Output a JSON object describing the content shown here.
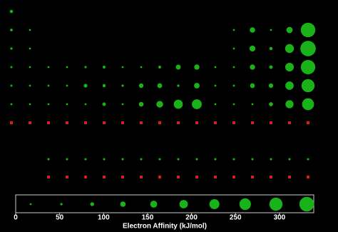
{
  "chart_data": {
    "type": "bubble-table",
    "color": "#19b319",
    "unknown_color": "#d42020",
    "series": [
      {
        "x": [
          1
        ],
        "values": [
          73
        ]
      },
      {
        "x": [
          1,
          2,
          13,
          14,
          15,
          16,
          17
        ],
        "values": [
          60,
          0,
          27,
          122,
          7,
          141,
          328
        ]
      },
      {
        "x": [
          1,
          2,
          13,
          14,
          15,
          16,
          17
        ],
        "values": [
          53,
          0,
          43,
          134,
          72,
          200,
          349
        ]
      },
      {
        "x": [
          1,
          2,
          3,
          4,
          5,
          6,
          7,
          8,
          9,
          10,
          11,
          12,
          13,
          14,
          15,
          16,
          17
        ],
        "values": [
          48,
          2,
          18,
          8,
          51,
          65,
          0,
          15,
          64,
          112,
          119,
          0,
          29,
          119,
          78,
          195,
          325
        ]
      },
      {
        "x": [
          1,
          2,
          3,
          4,
          5,
          6,
          7,
          8,
          9,
          10,
          11,
          12,
          13,
          14,
          15,
          16,
          17
        ],
        "values": [
          47,
          5,
          30,
          41,
          86,
          72,
          53,
          101,
          110,
          54,
          126,
          0,
          29,
          107,
          101,
          190,
          295
        ]
      },
      {
        "x": [
          1,
          2,
          3,
          4,
          5,
          6,
          7,
          8,
          9,
          10,
          11,
          12,
          13,
          14,
          15,
          16,
          17
        ],
        "values": [
          46,
          14,
          33,
          0,
          31,
          79,
          14,
          106,
          151,
          205,
          223,
          0,
          36,
          35,
          91,
          183,
          270
        ]
      },
      {
        "x": [
          1,
          2,
          3,
          4,
          5,
          6,
          7,
          8,
          9,
          10,
          11,
          12,
          13,
          14,
          15,
          16,
          17
        ],
        "values": [
          null,
          null,
          null,
          null,
          null,
          null,
          null,
          null,
          null,
          null,
          null,
          null,
          null,
          null,
          null,
          null,
          null
        ]
      },
      {
        "x": [
          3,
          4,
          5,
          6,
          7,
          8,
          9,
          10,
          11,
          12,
          13,
          14,
          15,
          16,
          17
        ],
        "values": [
          50,
          50,
          50,
          50,
          50,
          50,
          50,
          50,
          50,
          50,
          50,
          50,
          50,
          50,
          50
        ]
      },
      {
        "x": [
          3,
          4,
          5,
          6,
          7,
          8,
          9,
          10,
          11,
          12,
          13,
          14,
          15,
          16,
          17
        ],
        "values": [
          null,
          null,
          null,
          null,
          null,
          null,
          null,
          null,
          null,
          null,
          null,
          null,
          null,
          null,
          null
        ]
      }
    ],
    "legend_values": [
      17,
      52,
      87,
      122,
      157,
      191,
      226,
      261,
      296,
      331
    ],
    "xlim": [
      0,
      339
    ],
    "xticks": [
      0,
      50,
      100,
      150,
      200,
      250,
      300
    ],
    "xlabel": "Electron Affinity (kJ/mol)"
  }
}
